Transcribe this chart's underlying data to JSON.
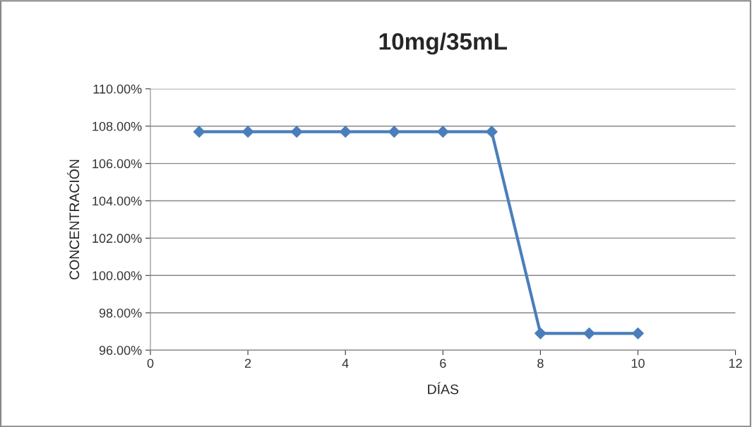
{
  "chart_data": {
    "type": "line",
    "title": "10mg/35mL",
    "xlabel": "DÍAS",
    "ylabel": "CONCENTRACIÓN",
    "x": [
      1,
      2,
      3,
      4,
      5,
      6,
      7,
      8,
      9,
      10
    ],
    "series": [
      {
        "color": "#4a7ebb",
        "values": [
          107.7,
          107.7,
          107.7,
          107.7,
          107.7,
          107.7,
          107.7,
          96.9,
          96.9,
          96.9
        ]
      }
    ],
    "xlim": [
      0,
      12
    ],
    "xticks": [
      0,
      2,
      4,
      6,
      8,
      10,
      12
    ],
    "ylim": [
      96,
      110
    ],
    "yticks": [
      {
        "value": 96,
        "label": "96.00%"
      },
      {
        "value": 98,
        "label": "98.00%"
      },
      {
        "value": 100,
        "label": "100.00%"
      },
      {
        "value": 102,
        "label": "102.00%"
      },
      {
        "value": 104,
        "label": "104.00%"
      },
      {
        "value": 106,
        "label": "106.00%"
      },
      {
        "value": 108,
        "label": "108.00%"
      },
      {
        "value": 110,
        "label": "110.00%"
      }
    ],
    "grid": "y",
    "marker": "diamond",
    "line_style": "solid",
    "legend": false
  }
}
